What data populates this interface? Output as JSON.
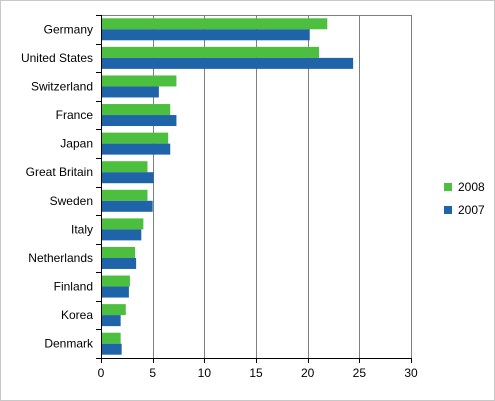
{
  "chart_data": {
    "type": "bar",
    "orientation": "horizontal",
    "title": "",
    "xlabel": "",
    "ylabel": "",
    "categories": [
      "Germany",
      "United States",
      "Switzerland",
      "France",
      "Japan",
      "Great Britain",
      "Sweden",
      "Italy",
      "Netherlands",
      "Finland",
      "Korea",
      "Denmark"
    ],
    "series": [
      {
        "name": "2008",
        "color": "#4dbf3f",
        "values": [
          21.9,
          21.1,
          7.3,
          6.7,
          6.5,
          4.5,
          4.5,
          4.1,
          3.3,
          2.8,
          2.4,
          1.9
        ]
      },
      {
        "name": "2007",
        "color": "#1f64a8",
        "values": [
          20.2,
          24.4,
          5.6,
          7.3,
          6.7,
          5.1,
          5.0,
          3.9,
          3.4,
          2.7,
          1.9,
          2.0
        ]
      }
    ],
    "xlim": [
      0,
      30
    ],
    "xticks": [
      "0",
      "5",
      "10",
      "15",
      "20",
      "25",
      "30"
    ],
    "grid": "vertical",
    "legend_position": "right"
  }
}
